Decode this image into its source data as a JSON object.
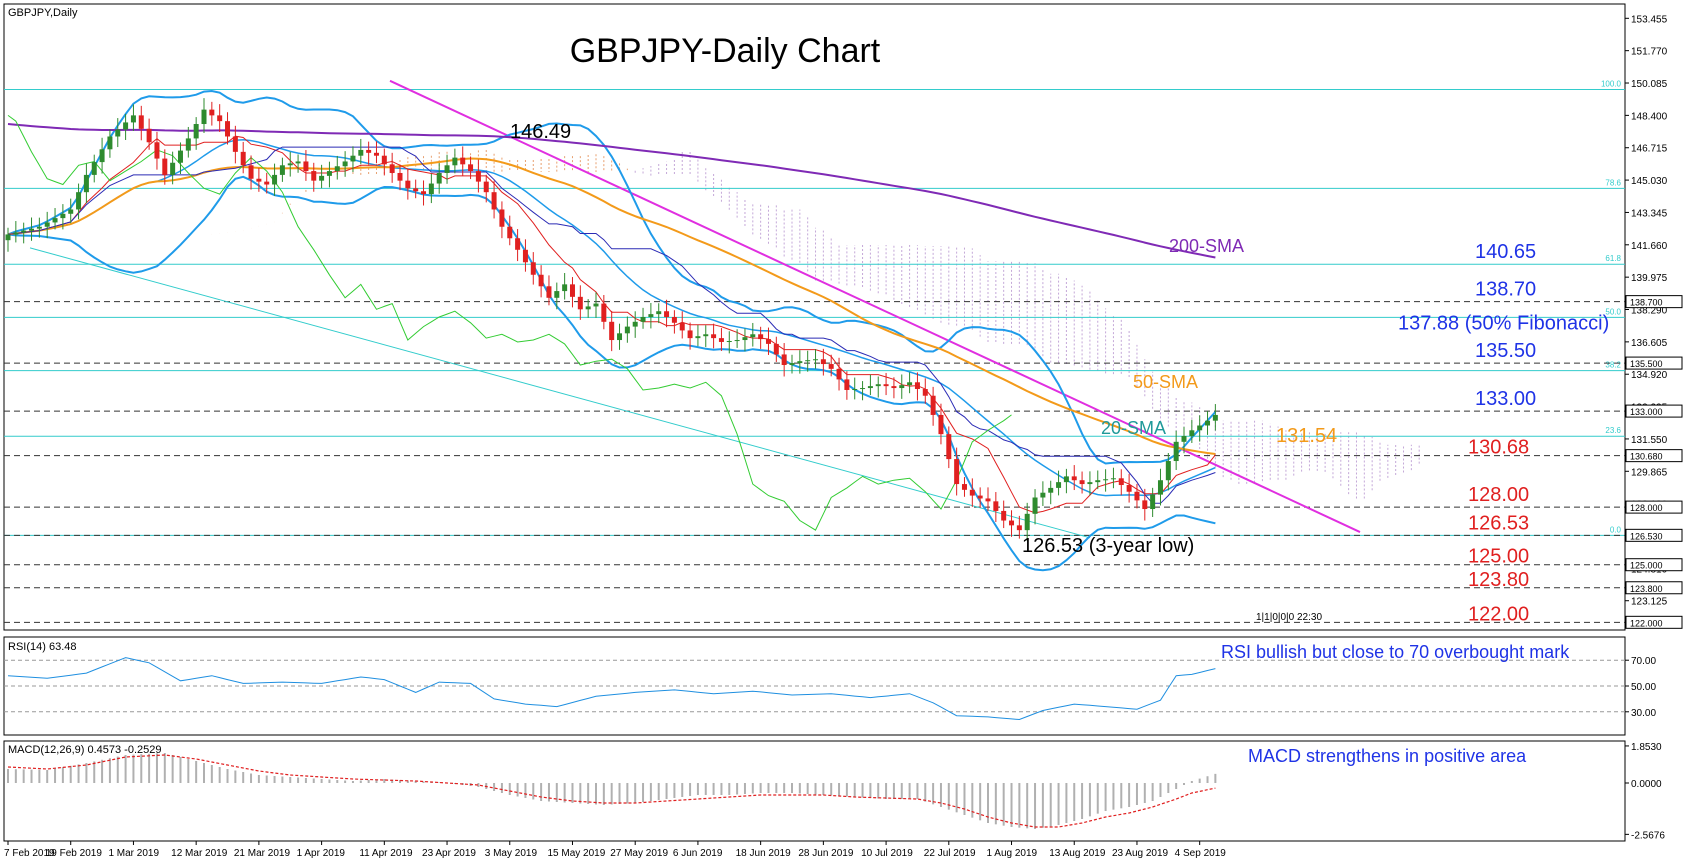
{
  "header": {
    "symbol_label": "GBPJPY,Daily",
    "chart_title": "GBPJPY-Daily Chart"
  },
  "colors": {
    "bull": "#2e8b2e",
    "bear": "#e02020",
    "bollinger": "#1f9bea",
    "sma20": "#1f9bea",
    "sma50": "#f39a1a",
    "sma200": "#7f2ab5",
    "trend": "#e02fe0",
    "tenkan": "#e02020",
    "kijun": "#2b2bb5",
    "chikou": "#33cc33",
    "cloud_a": "#e8a070",
    "cloud_b": "#c4a8d8",
    "fib": "#33cccc",
    "blue_text": "#1f33e6",
    "red_text": "#e02020",
    "orange_text": "#f39a1a",
    "teal_text": "#1f9999",
    "purple_text": "#7f2ab5"
  },
  "chart_data": [
    {
      "type": "candlestick",
      "title": "GBPJPY-Daily Chart",
      "ylim": [
        121.6,
        154.2
      ],
      "y_ticks": [
        "153.455",
        "151.770",
        "150.085",
        "148.400",
        "146.715",
        "145.030",
        "143.345",
        "141.660",
        "139.975",
        "138.290",
        "136.605",
        "134.920",
        "133.235",
        "131.550",
        "129.865",
        "128.180",
        "126.495",
        "124.810",
        "123.125"
      ],
      "x_ticks": [
        "7 Feb 2019",
        "19 Feb 2019",
        "1 Mar 2019",
        "12 Mar 2019",
        "21 Mar 2019",
        "1 Apr 2019",
        "11 Apr 2019",
        "23 Apr 2019",
        "3 May 2019",
        "15 May 2019",
        "27 May 2019",
        "6 Jun 2019",
        "18 Jun 2019",
        "28 Jun 2019",
        "10 Jul 2019",
        "22 Jul 2019",
        "1 Aug 2019",
        "13 Aug 2019",
        "23 Aug 2019",
        "4 Sep 2019"
      ],
      "close_anchors": [
        [
          0,
          142.2
        ],
        [
          4,
          142.6
        ],
        [
          8,
          143.5
        ],
        [
          10,
          145.3
        ],
        [
          13,
          147.3
        ],
        [
          16,
          148.4
        ],
        [
          18,
          147.0
        ],
        [
          20,
          145.3
        ],
        [
          23,
          147.2
        ],
        [
          25,
          148.7
        ],
        [
          27,
          148.1
        ],
        [
          29,
          146.5
        ],
        [
          31,
          145.1
        ],
        [
          33,
          144.8
        ],
        [
          35,
          145.8
        ],
        [
          37,
          146.0
        ],
        [
          39,
          145.0
        ],
        [
          41,
          145.5
        ],
        [
          43,
          146.0
        ],
        [
          45,
          146.6
        ],
        [
          47,
          146.3
        ],
        [
          49,
          145.4
        ],
        [
          51,
          144.6
        ],
        [
          53,
          144.3
        ],
        [
          55,
          145.4
        ],
        [
          57,
          146.2
        ],
        [
          59,
          145.5
        ],
        [
          61,
          144.4
        ],
        [
          63,
          142.6
        ],
        [
          65,
          141.4
        ],
        [
          67,
          140.1
        ],
        [
          69,
          138.9
        ],
        [
          71,
          139.6
        ],
        [
          73,
          138.3
        ],
        [
          75,
          138.6
        ],
        [
          77,
          136.7
        ],
        [
          79,
          137.4
        ],
        [
          81,
          137.9
        ],
        [
          83,
          138.2
        ],
        [
          85,
          137.6
        ],
        [
          87,
          136.8
        ],
        [
          89,
          137.0
        ],
        [
          91,
          136.6
        ],
        [
          93,
          136.7
        ],
        [
          95,
          137.0
        ],
        [
          97,
          136.5
        ],
        [
          99,
          135.4
        ],
        [
          101,
          135.6
        ],
        [
          103,
          135.7
        ],
        [
          105,
          135.2
        ],
        [
          107,
          134.1
        ],
        [
          109,
          134.2
        ],
        [
          111,
          134.4
        ],
        [
          113,
          134.2
        ],
        [
          115,
          134.5
        ],
        [
          117,
          133.8
        ],
        [
          119,
          131.8
        ],
        [
          121,
          129.2
        ],
        [
          123,
          128.6
        ],
        [
          125,
          128.3
        ],
        [
          127,
          127.3
        ],
        [
          129,
          126.8
        ],
        [
          131,
          128.5
        ],
        [
          133,
          129.0
        ],
        [
          135,
          129.6
        ],
        [
          137,
          129.2
        ],
        [
          139,
          129.4
        ],
        [
          141,
          129.5
        ],
        [
          143,
          128.8
        ],
        [
          145,
          127.9
        ],
        [
          147,
          129.4
        ],
        [
          149,
          131.4
        ],
        [
          151,
          132.0
        ],
        [
          153,
          132.5
        ],
        [
          154,
          132.8
        ]
      ],
      "levels": [
        {
          "value": 146.49,
          "label": "146.49"
        },
        {
          "value": 140.65,
          "label": "140.65"
        },
        {
          "value": 138.7,
          "label": "138.70",
          "box": "138.700"
        },
        {
          "value": 137.88,
          "label": "137.88 (50% Fibonacci)"
        },
        {
          "value": 135.5,
          "label": "135.50",
          "box": "135.500"
        },
        {
          "value": 133.0,
          "label": "133.00",
          "box": "133.000"
        },
        {
          "value": 131.54,
          "label": "131.54"
        },
        {
          "value": 130.68,
          "label": "130.68",
          "box": "130.680"
        },
        {
          "value": 128.0,
          "label": "128.00",
          "box": "128.000"
        },
        {
          "value": 126.53,
          "label": "126.53",
          "box": "126.530"
        },
        {
          "value": 125.0,
          "label": "125.00",
          "box": "125.000"
        },
        {
          "value": 123.8,
          "label": "123.80",
          "box": "123.800"
        },
        {
          "value": 122.0,
          "label": "122.00",
          "box": "122.000"
        }
      ],
      "fib_levels": [
        {
          "value": 149.75,
          "label": "100.0"
        },
        {
          "value": 144.6,
          "label": "78.6"
        },
        {
          "value": 140.65,
          "label": "61.8"
        },
        {
          "value": 137.88,
          "label": "50.0"
        },
        {
          "value": 135.11,
          "label": "38.2"
        },
        {
          "value": 131.69,
          "label": "23.6"
        },
        {
          "value": 126.53,
          "label": "0.0"
        }
      ],
      "annotations": {
        "high": "146.49",
        "low": "126.53 (3-year low)",
        "sma200": "200-SMA",
        "sma50": "50-SMA",
        "sma20": "20-SMA",
        "timer": "1|1|0|0|0 22:30"
      }
    },
    {
      "type": "line",
      "title": "RSI(14) 63.48",
      "ylim": [
        12,
        88
      ],
      "y_ticks": [
        "70.00",
        "50.00",
        "30.00"
      ],
      "annotation": "RSI bullish but close to 70 overbought mark",
      "anchors": [
        [
          0,
          58
        ],
        [
          5,
          56
        ],
        [
          10,
          60
        ],
        [
          15,
          72
        ],
        [
          18,
          68
        ],
        [
          22,
          54
        ],
        [
          26,
          58
        ],
        [
          30,
          52
        ],
        [
          35,
          53
        ],
        [
          40,
          52
        ],
        [
          45,
          57
        ],
        [
          48,
          55
        ],
        [
          52,
          45
        ],
        [
          55,
          53
        ],
        [
          59,
          52
        ],
        [
          62,
          40
        ],
        [
          66,
          36
        ],
        [
          70,
          34
        ],
        [
          75,
          42
        ],
        [
          80,
          45
        ],
        [
          85,
          47
        ],
        [
          90,
          44
        ],
        [
          95,
          46
        ],
        [
          100,
          43
        ],
        [
          105,
          44
        ],
        [
          110,
          41
        ],
        [
          115,
          44
        ],
        [
          118,
          37
        ],
        [
          121,
          27
        ],
        [
          125,
          26
        ],
        [
          129,
          24
        ],
        [
          132,
          31
        ],
        [
          136,
          36
        ],
        [
          140,
          34
        ],
        [
          144,
          32
        ],
        [
          147,
          39
        ],
        [
          149,
          58
        ],
        [
          151,
          59
        ],
        [
          154,
          63.5
        ]
      ]
    },
    {
      "type": "bar",
      "title": "MACD(12,26,9) 0.4573 -0.2529",
      "ylim": [
        -2.9,
        2.1
      ],
      "y_ticks": [
        "1.8530",
        "0.0000",
        "-2.5676"
      ],
      "annotation": "MACD strengthens in positive area",
      "hist_anchors": [
        [
          0,
          0.7
        ],
        [
          5,
          0.65
        ],
        [
          10,
          1.0
        ],
        [
          15,
          1.4
        ],
        [
          20,
          1.5
        ],
        [
          24,
          1.1
        ],
        [
          28,
          0.7
        ],
        [
          32,
          0.4
        ],
        [
          36,
          0.3
        ],
        [
          40,
          0.2
        ],
        [
          44,
          0.1
        ],
        [
          48,
          0.2
        ],
        [
          52,
          0.1
        ],
        [
          56,
          0.0
        ],
        [
          60,
          -0.2
        ],
        [
          64,
          -0.6
        ],
        [
          68,
          -0.9
        ],
        [
          72,
          -1.0
        ],
        [
          76,
          -1.1
        ],
        [
          80,
          -1.0
        ],
        [
          84,
          -0.8
        ],
        [
          88,
          -0.6
        ],
        [
          92,
          -0.6
        ],
        [
          96,
          -0.5
        ],
        [
          100,
          -0.5
        ],
        [
          104,
          -0.6
        ],
        [
          108,
          -0.7
        ],
        [
          112,
          -0.8
        ],
        [
          116,
          -0.8
        ],
        [
          119,
          -1.2
        ],
        [
          122,
          -1.6
        ],
        [
          125,
          -2.0
        ],
        [
          128,
          -2.2
        ],
        [
          131,
          -2.3
        ],
        [
          134,
          -2.1
        ],
        [
          137,
          -1.8
        ],
        [
          140,
          -1.4
        ],
        [
          143,
          -1.2
        ],
        [
          146,
          -0.9
        ],
        [
          149,
          -0.3
        ],
        [
          151,
          0.1
        ],
        [
          154,
          0.4573
        ]
      ],
      "signal_anchors": [
        [
          0,
          0.8
        ],
        [
          5,
          0.7
        ],
        [
          10,
          0.9
        ],
        [
          15,
          1.3
        ],
        [
          20,
          1.4
        ],
        [
          24,
          1.2
        ],
        [
          28,
          0.9
        ],
        [
          32,
          0.6
        ],
        [
          36,
          0.4
        ],
        [
          40,
          0.3
        ],
        [
          44,
          0.2
        ],
        [
          48,
          0.15
        ],
        [
          52,
          0.1
        ],
        [
          56,
          0.0
        ],
        [
          60,
          -0.1
        ],
        [
          64,
          -0.4
        ],
        [
          68,
          -0.7
        ],
        [
          72,
          -0.9
        ],
        [
          76,
          -1.0
        ],
        [
          80,
          -1.0
        ],
        [
          84,
          -0.9
        ],
        [
          88,
          -0.8
        ],
        [
          92,
          -0.7
        ],
        [
          96,
          -0.6
        ],
        [
          100,
          -0.6
        ],
        [
          104,
          -0.6
        ],
        [
          108,
          -0.7
        ],
        [
          112,
          -0.75
        ],
        [
          116,
          -0.8
        ],
        [
          119,
          -1.0
        ],
        [
          122,
          -1.3
        ],
        [
          125,
          -1.7
        ],
        [
          128,
          -2.0
        ],
        [
          131,
          -2.2
        ],
        [
          134,
          -2.2
        ],
        [
          137,
          -2.0
        ],
        [
          140,
          -1.7
        ],
        [
          143,
          -1.5
        ],
        [
          146,
          -1.2
        ],
        [
          149,
          -0.8
        ],
        [
          151,
          -0.5
        ],
        [
          154,
          -0.2529
        ]
      ]
    }
  ]
}
